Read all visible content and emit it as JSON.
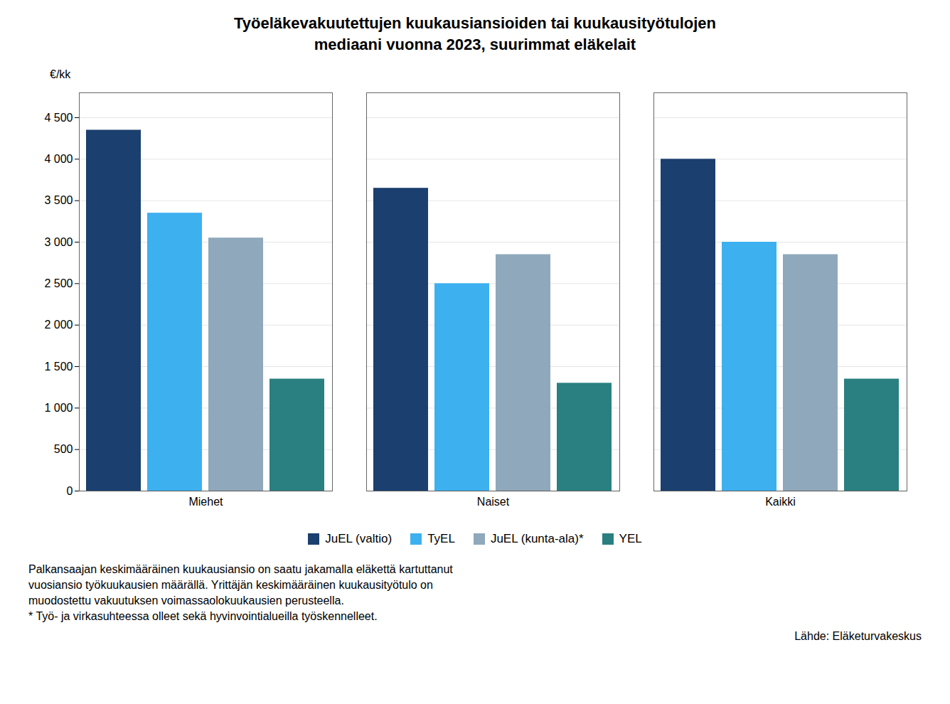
{
  "chart_data": {
    "type": "bar",
    "title": "Työeläkevakuutettujen kuukausiansioiden tai kuukausityötulojen",
    "subtitle": "mediaani vuonna 2023, suurimmat eläkelait",
    "ylabel": "€/kk",
    "categories": [
      "Miehet",
      "Naiset",
      "Kaikki"
    ],
    "series": [
      {
        "name": "JuEL (valtio)",
        "color": "#1b3f6e",
        "values": [
          4350,
          3650,
          4000
        ]
      },
      {
        "name": "TyEL",
        "color": "#3db0f0",
        "values": [
          3350,
          2500,
          3000
        ]
      },
      {
        "name": "JuEL (kunta-ala)*",
        "color": "#8fa8bc",
        "values": [
          3050,
          2850,
          2850
        ]
      },
      {
        "name": "YEL",
        "color": "#2a8080",
        "values": [
          1350,
          1300,
          1350
        ]
      }
    ],
    "ylim": [
      0,
      4800
    ],
    "yticks": [
      0,
      500,
      {
        "value": 1000,
        "label": "1 000"
      },
      {
        "value": 1500,
        "label": "1 500"
      },
      {
        "value": 2000,
        "label": "2 000"
      },
      {
        "value": 2500,
        "label": "2 500"
      },
      {
        "value": 3000,
        "label": "3 000"
      },
      {
        "value": 3500,
        "label": "3 500"
      },
      {
        "value": 4000,
        "label": "4 000"
      },
      {
        "value": 4500,
        "label": "4 500"
      }
    ],
    "grid": true,
    "legend": "bottom",
    "footnotes": [
      "Palkansaajan keskimääräinen kuukausiansio on saatu jakamalla eläkettä kartuttanut",
      "vuosiansio työkuukausien määrällä. Yrittäjän keskimääräinen kuukausityötulo on",
      "muodostettu vakuutuksen voimassaolokuukausien perusteella.",
      "* Työ- ja virkasuhteessa olleet sekä hyvinvointialueilla työskennelleet."
    ],
    "source": "Lähde: Eläketurvakeskus"
  }
}
